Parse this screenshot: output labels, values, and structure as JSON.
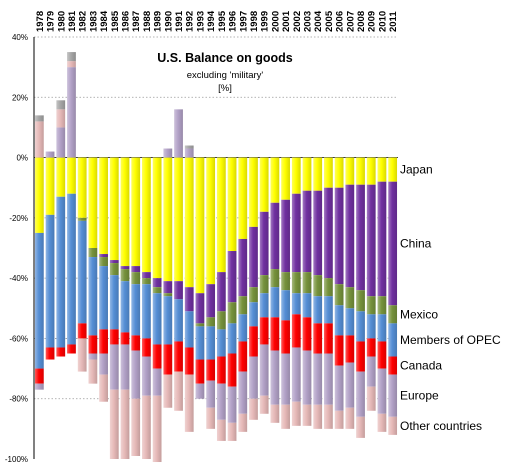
{
  "chart_data": {
    "type": "bar",
    "stacked": true,
    "title": "U.S. Balance on goods",
    "subtitle": "excluding 'military'",
    "unit": "[%]",
    "ylim": [
      -100,
      40
    ],
    "y_ticks": [
      {
        "value": 40,
        "label": "40%"
      },
      {
        "value": 20,
        "label": "20%"
      },
      {
        "value": 0,
        "label": "0%"
      },
      {
        "value": -20,
        "label": "-20%"
      },
      {
        "value": -40,
        "label": "-40%"
      },
      {
        "value": -60,
        "label": "-60%"
      },
      {
        "value": -80,
        "label": "-80%"
      },
      {
        "value": -100,
        "label": "-100%"
      }
    ],
    "grid": "horizontal dotted",
    "legend_placement": "right, inline with series",
    "categories": [
      "1978",
      "1979",
      "1980",
      "1981",
      "1982",
      "1983",
      "1984",
      "1985",
      "1986",
      "1987",
      "1988",
      "1989",
      "1990",
      "1991",
      "1992",
      "1993",
      "1994",
      "1995",
      "1996",
      "1997",
      "1998",
      "1999",
      "2000",
      "2001",
      "2002",
      "2003",
      "2004",
      "2005",
      "2006",
      "2007",
      "2008",
      "2009",
      "2010",
      "2011"
    ],
    "series": [
      {
        "name": "Japan",
        "color": "#ffff00",
        "values": [
          -25,
          -19,
          -13,
          -12,
          -20,
          -30,
          -32,
          -34,
          -36,
          -36,
          -38,
          -40,
          -41,
          -41,
          -43,
          -45,
          -42,
          -38,
          -31,
          -27,
          -23,
          -18,
          -15,
          -14,
          -12,
          -11,
          -11,
          -10,
          -10,
          -9,
          -9,
          -9,
          -8,
          -8
        ]
      },
      {
        "name": "China",
        "color": "#7030a0",
        "values": [
          0,
          0,
          0,
          0,
          0,
          0,
          -1,
          -1,
          -1,
          -2,
          -2,
          -3,
          -4,
          -6,
          -8,
          -10,
          -11,
          -13,
          -17,
          -19,
          -20,
          -21,
          -22,
          -24,
          -26,
          -27,
          -28,
          -30,
          -32,
          -34,
          -35,
          -37,
          -38,
          -41
        ]
      },
      {
        "name": "Mexico",
        "color": "#76923c",
        "values": [
          0,
          0,
          0,
          0,
          -1,
          -3,
          -3,
          -4,
          -4,
          -4,
          -2,
          -2,
          -1,
          0,
          0,
          -1,
          -3,
          -6,
          -7,
          -6,
          -5,
          -6,
          -6,
          -6,
          -7,
          -7,
          -7,
          -6,
          -7,
          -7,
          -7,
          -6,
          -6,
          -6
        ]
      },
      {
        "name": "Members of OPEC",
        "color": "#558ed5",
        "values": [
          -45,
          -44,
          -50,
          -50,
          -34,
          -26,
          -21,
          -18,
          -17,
          -17,
          -18,
          -17,
          -16,
          -14,
          -12,
          -11,
          -11,
          -9,
          -10,
          -9,
          -8,
          -8,
          -10,
          -10,
          -7,
          -8,
          -9,
          -9,
          -10,
          -9,
          -10,
          -8,
          -9,
          -11
        ]
      },
      {
        "name": "Canada",
        "color": "#ff0000",
        "values": [
          -5,
          -4,
          -3,
          -3,
          -5,
          -6,
          -8,
          -5,
          -4,
          -5,
          -6,
          -8,
          -10,
          -10,
          -9,
          -8,
          -7,
          -9,
          -11,
          -10,
          -10,
          -9,
          -11,
          -11,
          -11,
          -11,
          -10,
          -10,
          -10,
          -9,
          -10,
          -6,
          -9,
          -6
        ]
      },
      {
        "name": "Europe",
        "color": "#b2a1c7",
        "values": [
          -2,
          2,
          10,
          30,
          0,
          -2,
          -7,
          -15,
          -15,
          -16,
          -13,
          -9,
          3,
          16,
          3,
          -5,
          -9,
          -12,
          -12,
          -14,
          -14,
          -17,
          -18,
          -17,
          -18,
          -18,
          -17,
          -17,
          -15,
          -15,
          -15,
          -10,
          -15,
          -14
        ]
      },
      {
        "name": "Other countries",
        "color": "#e6b9b8",
        "values": [
          12,
          0,
          6,
          2,
          -11,
          -8,
          -9,
          -23,
          -23,
          -19,
          -21,
          -22,
          -11,
          -13,
          -19,
          0,
          -7,
          -7,
          -6,
          -6,
          -7,
          -6,
          -6,
          -8,
          -8,
          -7,
          -8,
          -8,
          -6,
          -7,
          -7,
          -8,
          -6,
          -6
        ]
      },
      {
        "name": "",
        "color": "#a6a6a6",
        "values": [
          2,
          0,
          3,
          3,
          0,
          0,
          0,
          0,
          0,
          0,
          0,
          0,
          0,
          0,
          1,
          0,
          0,
          0,
          0,
          0,
          0,
          0,
          0,
          0,
          0,
          0,
          0,
          0,
          0,
          0,
          0,
          0,
          0,
          0
        ]
      }
    ]
  }
}
